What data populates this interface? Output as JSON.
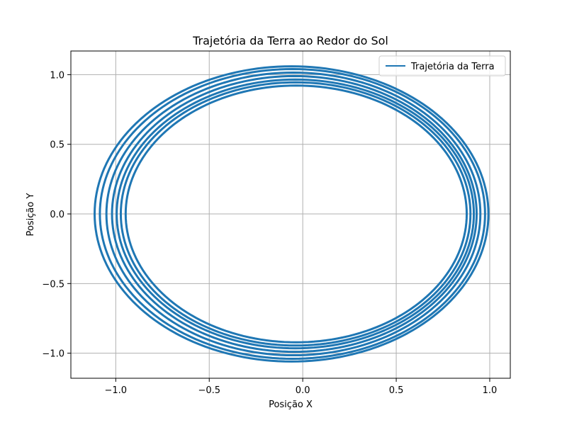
{
  "chart_data": {
    "type": "line",
    "title": "Trajetória da Terra ao Redor do Sol",
    "xlabel": "Posição X",
    "ylabel": "Posição Y",
    "xlim": [
      -1.24,
      1.11
    ],
    "ylim": [
      -1.18,
      1.17
    ],
    "grid": true,
    "legend_position": "top-right",
    "x_ticks": [
      -1.0,
      -0.5,
      0.0,
      0.5,
      1.0
    ],
    "y_ticks": [
      -1.0,
      -0.5,
      0.0,
      0.5,
      1.0
    ],
    "x_tick_labels": [
      "−1.0",
      "−0.5",
      "0.0",
      "0.5",
      "1.0"
    ],
    "y_tick_labels": [
      "−1.0",
      "−0.5",
      "0.0",
      "0.5",
      "1.0"
    ],
    "series": [
      {
        "name": "Trajetória da Terra",
        "color": "#1f77b4",
        "curve": "ellipse",
        "orbits": [
          {
            "cx": -0.06,
            "cy": 0.0,
            "rx": 1.053,
            "ry": 1.06
          },
          {
            "cx": -0.055,
            "cy": 0.0,
            "rx": 1.03,
            "ry": 1.04
          },
          {
            "cx": -0.05,
            "cy": 0.0,
            "rx": 1.0,
            "ry": 1.015
          },
          {
            "cx": -0.045,
            "cy": 0.0,
            "rx": 0.975,
            "ry": 0.99
          },
          {
            "cx": -0.04,
            "cy": 0.0,
            "rx": 0.955,
            "ry": 0.965
          },
          {
            "cx": -0.038,
            "cy": 0.0,
            "rx": 0.935,
            "ry": 0.945
          },
          {
            "cx": -0.035,
            "cy": 0.0,
            "rx": 0.912,
            "ry": 0.922
          }
        ]
      }
    ]
  }
}
